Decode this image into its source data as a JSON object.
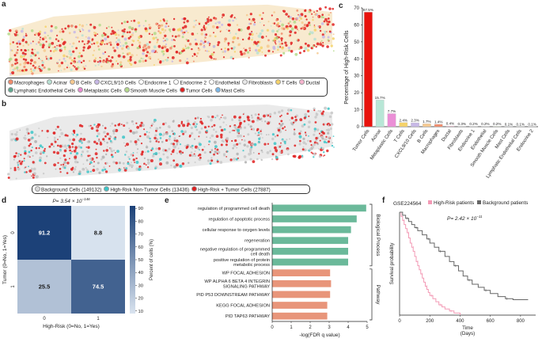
{
  "panels": {
    "a": "a",
    "b": "b",
    "c": "c",
    "d": "d",
    "e": "e",
    "f": "f"
  },
  "legend_a": [
    {
      "label": "Macrophages",
      "color": "#f08a6a"
    },
    {
      "label": "Acinar",
      "color": "#b8e0d2"
    },
    {
      "label": "B Cells",
      "color": "#f6c98f"
    },
    {
      "label": "CXCL9/10 Cells",
      "color": "#c7b8e6"
    },
    {
      "label": "Endocrine 1",
      "color": "#ffffff"
    },
    {
      "label": "Endocrine 2",
      "color": "#ffffff"
    },
    {
      "label": "Endothelial",
      "color": "#ffffff"
    },
    {
      "label": "Fibroblasts",
      "color": "#e8e8e8"
    },
    {
      "label": "T Cells",
      "color": "#f5d26a"
    },
    {
      "label": "Ductal",
      "color": "#f7b5cf"
    },
    {
      "label": "Lymphatic Endothelial Cells",
      "color": "#5fa88f"
    },
    {
      "label": "Metaplastic Cells",
      "color": "#e98ad2"
    },
    {
      "label": "Smooth Muscle Cells",
      "color": "#b4d98a"
    },
    {
      "label": "Tumor Cells",
      "color": "#e02020"
    },
    {
      "label": "Mast Cells",
      "color": "#7ab7e8"
    }
  ],
  "legend_b": [
    {
      "label": "Background Cells (149132)",
      "color": "#d8d8d8"
    },
    {
      "label": "High-Risk Non-Tumor Cells (13436)",
      "color": "#3cc6c8"
    },
    {
      "label": "High-Risk + Tumor Cells (27887)",
      "color": "#e02020"
    }
  ],
  "chart_data": [
    {
      "panel": "c",
      "type": "bar",
      "ylabel": "Percentage of High-Risk Cells",
      "ylim": [
        0,
        70
      ],
      "yticks": [
        0,
        10,
        20,
        30,
        40,
        50,
        60,
        70
      ],
      "categories": [
        "Tumor Cells",
        "Acinar",
        "Metaplastic Cells",
        "T Cells",
        "CXCL9/10 Cells",
        "B Cells",
        "Macrophages",
        "Ductal",
        "Fibroblasts",
        "Endocrine 1",
        "Endothelial",
        "Smooth Muscle Cells",
        "Mast Cells",
        "Lymphatic Endothelial Cells",
        "Endocrine 2"
      ],
      "values": [
        67.5,
        15.7,
        7.7,
        2.4,
        2.3,
        1.7,
        1.4,
        0.4,
        0.3,
        0.2,
        0.2,
        0.2,
        0.1,
        0.1,
        0.1
      ],
      "value_labels": [
        "67.5%",
        "15.7%",
        "7.7%",
        "2.4%",
        "2.3%",
        "1.7%",
        "1.4%",
        "0.4%",
        "0.3%",
        "0.2%",
        "0.2%",
        "0.2%",
        "0.1%",
        "0.1%",
        "0.1%"
      ],
      "colors": [
        "#e8120c",
        "#b8e6d6",
        "#ea8fd6",
        "#f5d26a",
        "#c7b8e6",
        "#f6c98f",
        "#f08a6a",
        "#f7b5cf",
        "#e0e0e0",
        "#cccccc",
        "#cccccc",
        "#b4d98a",
        "#7ab7e8",
        "#5fa88f",
        "#cccccc"
      ]
    },
    {
      "panel": "d",
      "type": "heatmap",
      "title_p": "P= 3.54 × 10",
      "title_exp": "−146",
      "ylabel": "Tumor (0=No, 1=Yes)",
      "xlabel": "High-Risk (0=No, 1=Yes)",
      "rows": [
        "0",
        "1"
      ],
      "cols": [
        "0",
        "1"
      ],
      "values": [
        [
          91.2,
          8.8
        ],
        [
          25.5,
          74.5
        ]
      ],
      "cell_labels": [
        [
          "91.2",
          "8.8"
        ],
        [
          "25.5",
          "74.5"
        ]
      ],
      "colorbar_label": "Percent of cells (%)",
      "colorbar_ticks": [
        10,
        20,
        30,
        40,
        50,
        60,
        70,
        80,
        90
      ]
    },
    {
      "panel": "e",
      "type": "bar",
      "orientation": "horizontal",
      "xlabel": "-log(FDR q value)",
      "xlim": [
        0,
        5
      ],
      "xticks": [
        0,
        1,
        2,
        3,
        4,
        5
      ],
      "categories": [
        "regulation of programmed cell death",
        "regulation of apoptotic process",
        "cellular response to oxygen levels",
        "regeneration",
        "negative regulation of programmed cell death",
        "positive regulation of protein metabolic process",
        "WP FOCAL ADHESION",
        "WP ALPHA 6 BETA 4 INTEGRIN SIGNALING PATHWAY",
        "PID P53 DOWNSTREAM PATHWAY",
        "KEGG FOCAL ADHESION",
        "PID TAP63 PATHWAY"
      ],
      "category_lines": [
        [
          "regulation of programmed cell death"
        ],
        [
          "regulation of apoptotic process"
        ],
        [
          "cellular response to oxygen levels"
        ],
        [
          "regeneration"
        ],
        [
          "negative regulation of programmed",
          "cell death"
        ],
        [
          "positive regulation of protein",
          "metabolic process"
        ],
        [
          "WP FOCAL ADHESION"
        ],
        [
          "WP ALPHA 6 BETA 4 INTEGRIN",
          "SIGNALING PATHWAY"
        ],
        [
          "PID P53 DOWNSTREAM PATHWAY"
        ],
        [
          "KEGG FOCAL ADHESION"
        ],
        [
          "PID TAP63 PATHWAY"
        ]
      ],
      "values": [
        4.95,
        4.45,
        4.15,
        4.0,
        4.0,
        4.0,
        3.05,
        3.1,
        3.05,
        2.9,
        2.9
      ],
      "groups": [
        {
          "name": "Biological Process",
          "color": "#6bb99a",
          "count": 6
        },
        {
          "name": "Pathway",
          "color": "#e8957a",
          "count": 5
        }
      ]
    },
    {
      "panel": "f",
      "type": "line",
      "title": "GSE224564",
      "p_text": "P= 2.42 × 10",
      "p_exp": "−11",
      "xlabel": "Time",
      "xlabel2": "(Days)",
      "ylabel": "Survival probability",
      "xlim": [
        0,
        900
      ],
      "xticks": [
        0,
        200,
        400,
        600,
        800
      ],
      "ylim": [
        0,
        1
      ],
      "series": [
        {
          "name": "High-Risk patients",
          "color": "#f39ab5",
          "x": [
            0,
            10,
            20,
            30,
            40,
            50,
            60,
            70,
            80,
            90,
            100,
            110,
            120,
            130,
            140,
            150,
            160,
            170,
            180,
            190,
            200,
            220,
            240,
            260,
            280,
            300,
            330,
            360,
            400
          ],
          "y": [
            1,
            0.96,
            0.92,
            0.88,
            0.84,
            0.8,
            0.75,
            0.7,
            0.66,
            0.62,
            0.57,
            0.52,
            0.48,
            0.44,
            0.4,
            0.36,
            0.32,
            0.28,
            0.25,
            0.22,
            0.19,
            0.16,
            0.13,
            0.1,
            0.08,
            0.06,
            0.04,
            0.02,
            0.0
          ]
        },
        {
          "name": "Background patients",
          "color": "#666666",
          "x": [
            0,
            20,
            40,
            60,
            80,
            100,
            120,
            150,
            180,
            200,
            230,
            260,
            300,
            330,
            360,
            390,
            420,
            450,
            480,
            520,
            560,
            600,
            650,
            700,
            750,
            850
          ],
          "y": [
            1,
            0.97,
            0.94,
            0.91,
            0.88,
            0.85,
            0.82,
            0.78,
            0.74,
            0.7,
            0.66,
            0.62,
            0.57,
            0.52,
            0.48,
            0.43,
            0.38,
            0.34,
            0.3,
            0.27,
            0.24,
            0.21,
            0.18,
            0.16,
            0.15,
            0.15
          ]
        }
      ]
    }
  ]
}
